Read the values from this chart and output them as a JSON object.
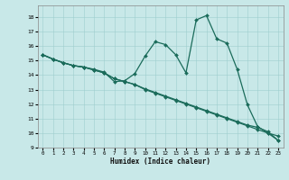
{
  "xlabel": "Humidex (Indice chaleur)",
  "xlim": [
    -0.5,
    23.5
  ],
  "ylim": [
    9,
    18.8
  ],
  "yticks": [
    9,
    10,
    11,
    12,
    13,
    14,
    15,
    16,
    17,
    18
  ],
  "xticks": [
    0,
    1,
    2,
    3,
    4,
    5,
    6,
    7,
    8,
    9,
    10,
    11,
    12,
    13,
    14,
    15,
    16,
    17,
    18,
    19,
    20,
    21,
    22,
    23
  ],
  "bg_color": "#c8e8e8",
  "line_color": "#1a6b5a",
  "line1_x": [
    0,
    1,
    2,
    3,
    4,
    5,
    6,
    7,
    8,
    9,
    10,
    11,
    12,
    13,
    14,
    15,
    16,
    17,
    18,
    19,
    20,
    21,
    22,
    23
  ],
  "line1_y": [
    15.4,
    15.1,
    14.85,
    14.65,
    14.55,
    14.4,
    14.2,
    13.55,
    13.6,
    14.1,
    15.3,
    16.3,
    16.1,
    15.4,
    14.15,
    17.8,
    18.1,
    16.5,
    16.2,
    14.4,
    11.95,
    10.45,
    10.0,
    9.5
  ],
  "line2_x": [
    0,
    1,
    2,
    3,
    4,
    5,
    6,
    7,
    8,
    9,
    10,
    11,
    12,
    13,
    14,
    15,
    16,
    17,
    18,
    19,
    20,
    21,
    22,
    23
  ],
  "line2_y": [
    15.4,
    15.1,
    14.85,
    14.65,
    14.55,
    14.35,
    14.15,
    13.75,
    13.55,
    13.35,
    13.0,
    12.75,
    12.5,
    12.25,
    12.0,
    11.75,
    11.5,
    11.25,
    11.0,
    10.75,
    10.5,
    10.25,
    10.0,
    9.8
  ],
  "line3_x": [
    0,
    1,
    2,
    3,
    4,
    5,
    6,
    7,
    8,
    9,
    10,
    11,
    12,
    13,
    14,
    15,
    16,
    17,
    18,
    19,
    20,
    21,
    22,
    23
  ],
  "line3_y": [
    15.4,
    15.1,
    14.85,
    14.65,
    14.55,
    14.35,
    14.15,
    13.75,
    13.55,
    13.35,
    13.05,
    12.8,
    12.55,
    12.3,
    12.05,
    11.8,
    11.55,
    11.3,
    11.05,
    10.8,
    10.55,
    10.4,
    10.1,
    9.5
  ]
}
